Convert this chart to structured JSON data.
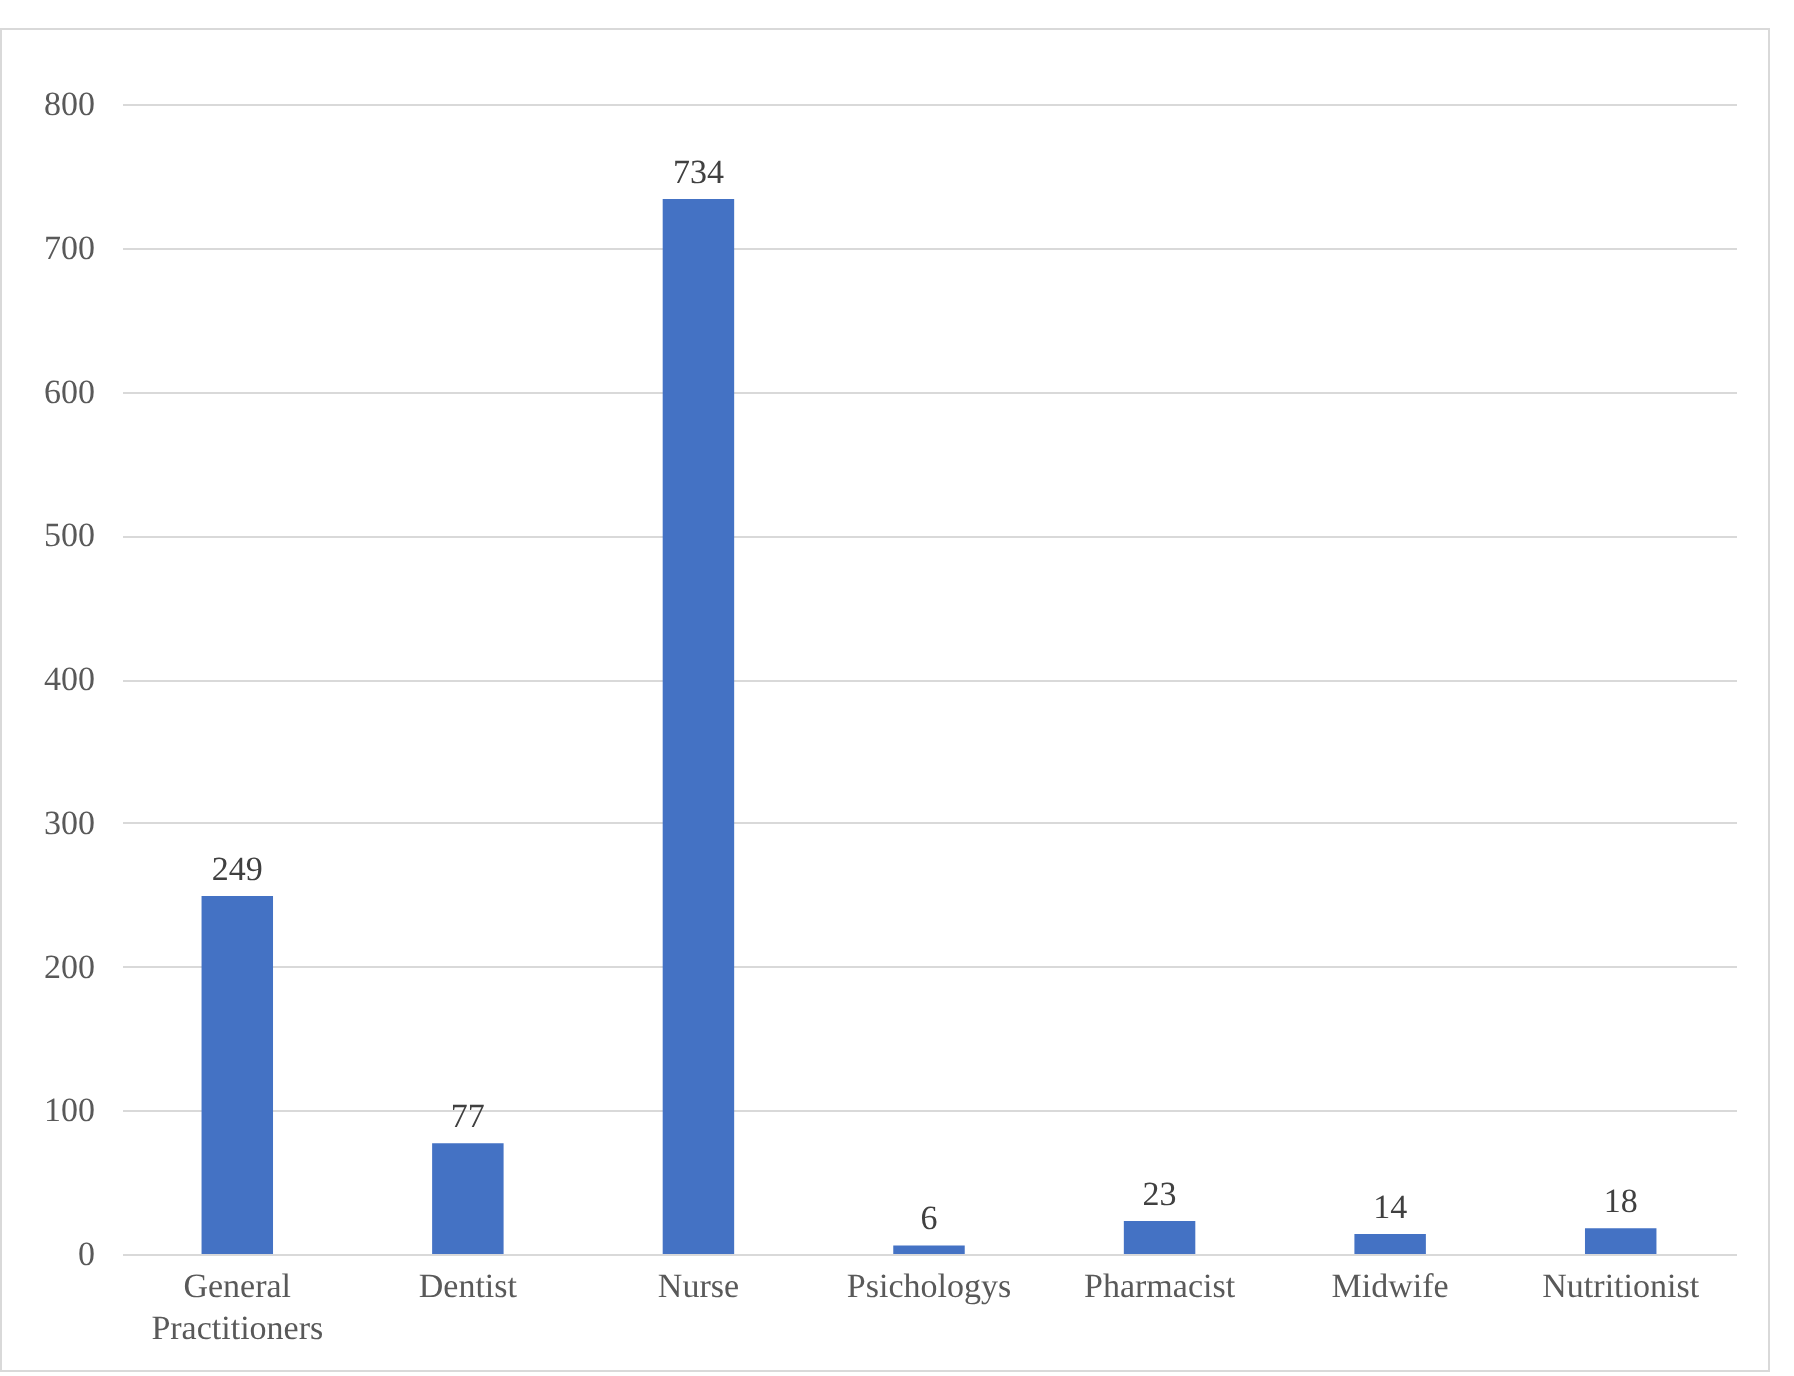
{
  "chart_data": {
    "type": "bar",
    "categories": [
      "General Practitioners",
      "Dentist",
      "Nurse",
      "Psichologys",
      "Pharmacist",
      "Midwife",
      "Nutritionist"
    ],
    "values": [
      249,
      77,
      734,
      6,
      23,
      14,
      18
    ],
    "color": "#4472c4",
    "ylim": [
      0,
      800
    ],
    "yticks": [
      0,
      100,
      200,
      300,
      400,
      500,
      600,
      700,
      800
    ],
    "grid": "y",
    "data_labels": true
  }
}
